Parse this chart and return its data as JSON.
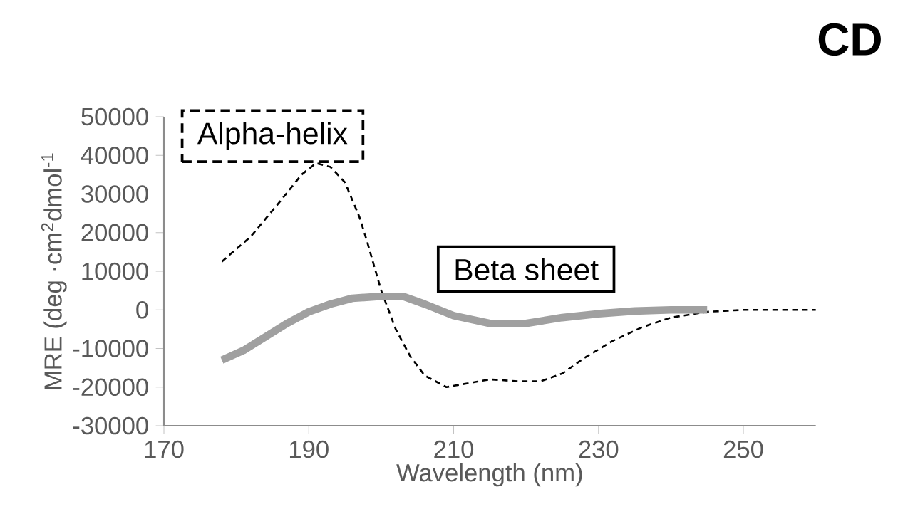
{
  "chart_data": {
    "type": "line",
    "title": "CD",
    "xlabel": "Wavelength (nm)",
    "ylabel": "MRE (deg ·cm$^{2}$dmol$^{-1}$",
    "xlim": [
      170,
      260
    ],
    "xticks": [
      170,
      190,
      210,
      230,
      250
    ],
    "ylim": [
      -30000,
      50000
    ],
    "yticks": [
      -30000,
      -20000,
      -10000,
      0,
      10000,
      20000,
      30000,
      40000,
      50000
    ],
    "grid": false,
    "series": [
      {
        "name": "Alpha-helix",
        "color": "#000000",
        "line_style": "dashed",
        "x": [
          178,
          182,
          186,
          189,
          191,
          193,
          195,
          197,
          198,
          200,
          202,
          204,
          206,
          209,
          212,
          215,
          219,
          222,
          225,
          228,
          232,
          236,
          240,
          245,
          250,
          255,
          260
        ],
        "values": [
          12500,
          19000,
          28000,
          35000,
          38000,
          37000,
          33000,
          24000,
          18000,
          5000,
          -5000,
          -12000,
          -17000,
          -20000,
          -19000,
          -18000,
          -18500,
          -18500,
          -16500,
          -12500,
          -8000,
          -4500,
          -2000,
          -500,
          0,
          0,
          0
        ]
      },
      {
        "name": "Beta sheet",
        "color": "#a0a0a0",
        "line_style": "solid",
        "x": [
          178,
          181,
          184,
          187,
          190,
          193,
          196,
          200,
          203,
          206,
          210,
          215,
          220,
          225,
          230,
          235,
          240,
          245
        ],
        "values": [
          -13000,
          -10500,
          -7000,
          -3500,
          -500,
          1500,
          3000,
          3500,
          3500,
          1500,
          -1500,
          -3500,
          -3500,
          -2000,
          -1000,
          -300,
          0,
          0
        ]
      }
    ]
  }
}
